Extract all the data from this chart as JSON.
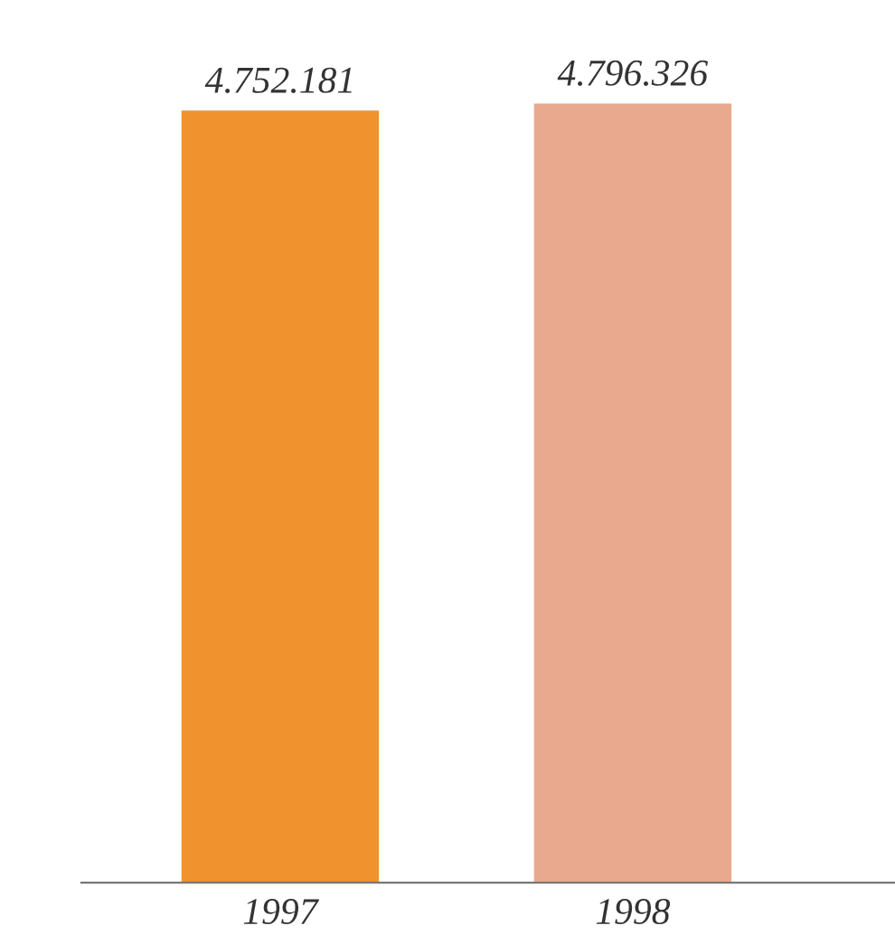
{
  "chart_data": {
    "type": "bar",
    "categories": [
      "1997",
      "1998"
    ],
    "values": [
      4752181,
      4796326
    ],
    "colors": [
      "#f0922e",
      "#e9a98e"
    ],
    "value_labels": [
      "4.752.181",
      "4.796.326"
    ],
    "grid": false,
    "legend": false,
    "tick_labels": "x"
  }
}
